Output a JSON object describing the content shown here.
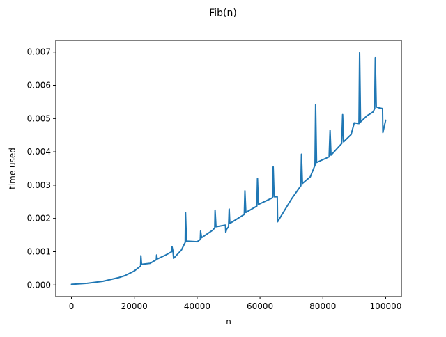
{
  "chart_data": {
    "type": "line",
    "title": "Fib(n)",
    "xlabel": "n",
    "ylabel": "time used",
    "xlim": [
      -5000,
      105000
    ],
    "ylim": [
      -0.00035,
      0.00735
    ],
    "xticks": [
      0,
      20000,
      40000,
      60000,
      80000,
      100000
    ],
    "xtick_labels": [
      "0",
      "20000",
      "40000",
      "60000",
      "80000",
      "100000"
    ],
    "yticks": [
      0.0,
      0.001,
      0.002,
      0.003,
      0.004,
      0.005,
      0.006,
      0.007
    ],
    "ytick_labels": [
      "0.000",
      "0.001",
      "0.002",
      "0.003",
      "0.004",
      "0.005",
      "0.006",
      "0.007"
    ],
    "grid": false,
    "legend": "none",
    "series": [
      {
        "color": "#1f77b4",
        "x": [
          0,
          5000,
          10000,
          15000,
          17000,
          20000,
          22000,
          22100,
          22300,
          25000,
          27000,
          27100,
          27300,
          30000,
          31900,
          32000,
          32300,
          32500,
          33000,
          35000,
          36200,
          36300,
          36600,
          40000,
          41000,
          41100,
          41400,
          45000,
          45600,
          45700,
          46000,
          49000,
          49100,
          49400,
          50000,
          50200,
          50400,
          55000,
          55200,
          55500,
          59000,
          59200,
          59500,
          64000,
          64200,
          64500,
          65500,
          65600,
          70000,
          73000,
          73200,
          73500,
          76000,
          77500,
          77700,
          78000,
          82000,
          82300,
          82600,
          86000,
          86300,
          86600,
          89000,
          90000,
          91500,
          91700,
          92000,
          94000,
          96000,
          96500,
          96700,
          97000,
          98000,
          99000,
          99100,
          100000
        ],
        "values": [
          2e-05,
          5e-05,
          0.00011,
          0.00022,
          0.00028,
          0.00042,
          0.00057,
          0.00088,
          0.00062,
          0.00065,
          0.00076,
          0.0009,
          0.00078,
          0.0009,
          0.001,
          0.00115,
          0.00102,
          0.0008,
          0.00085,
          0.00105,
          0.00128,
          0.00218,
          0.00132,
          0.0013,
          0.00137,
          0.00162,
          0.00142,
          0.00165,
          0.00172,
          0.00225,
          0.00175,
          0.0018,
          0.00158,
          0.00168,
          0.00175,
          0.00228,
          0.00185,
          0.00212,
          0.00283,
          0.00218,
          0.00237,
          0.0032,
          0.00242,
          0.00262,
          0.00355,
          0.00265,
          0.00265,
          0.0019,
          0.00258,
          0.00298,
          0.00393,
          0.00305,
          0.00325,
          0.0036,
          0.00542,
          0.00368,
          0.00385,
          0.00465,
          0.0039,
          0.00425,
          0.00512,
          0.0043,
          0.00452,
          0.00487,
          0.00485,
          0.00698,
          0.0049,
          0.00508,
          0.0052,
          0.0053,
          0.00683,
          0.00535,
          0.00532,
          0.0053,
          0.00458,
          0.00495
        ]
      }
    ]
  }
}
